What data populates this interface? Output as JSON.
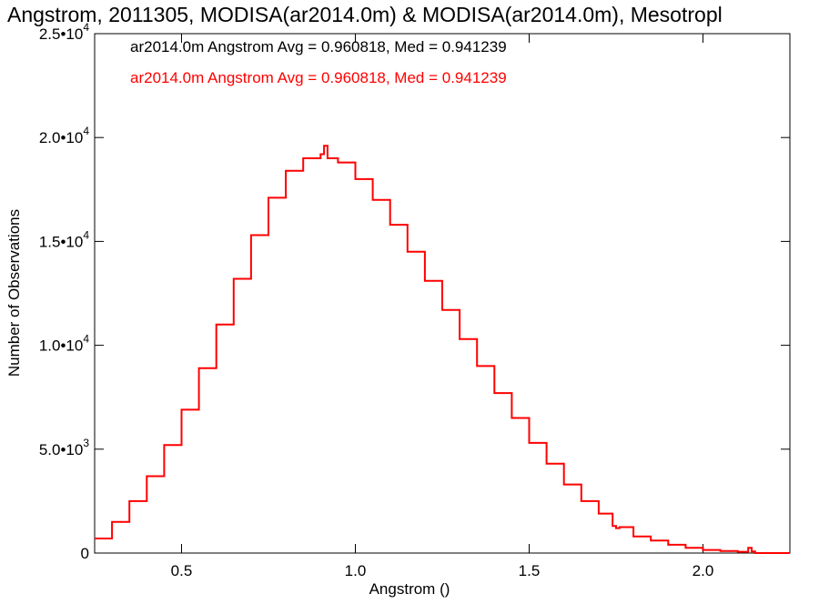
{
  "colors": {
    "black": "#000000",
    "red": "#ff0000",
    "background": "#ffffff"
  },
  "chart_data": {
    "type": "line",
    "title": "Angstrom, 2011305, MODISA(ar2014.0m) & MODISA(ar2014.0m), Mesotropl",
    "xlabel": "Angstrom ()",
    "ylabel": "Number of Observations",
    "xlim": [
      0.25,
      2.25
    ],
    "ylim": [
      0,
      25000
    ],
    "xticks": [
      0.5,
      1.0,
      1.5,
      2.0
    ],
    "xtick_labels": [
      "0.5",
      "1.0",
      "1.5",
      "2.0"
    ],
    "yticks": [
      0,
      5000,
      10000,
      15000,
      20000,
      25000
    ],
    "ytick_labels": [
      {
        "mant": "0",
        "exp": ""
      },
      {
        "mant": "5.0•10",
        "exp": "3"
      },
      {
        "mant": "1.0•10",
        "exp": "4"
      },
      {
        "mant": "1.5•10",
        "exp": "4"
      },
      {
        "mant": "2.0•10",
        "exp": "4"
      },
      {
        "mant": "2.5•10",
        "exp": "4"
      }
    ],
    "grid": false,
    "annotations": [
      {
        "text": "ar2014.0m Angstrom Avg = 0.960818, Med = 0.941239",
        "color": "#000000"
      },
      {
        "text": "ar2014.0m Angstrom Avg = 0.960818, Med = 0.941239",
        "color": "#ff0000"
      }
    ],
    "series": [
      {
        "color": "#ff0000",
        "step": true,
        "x": [
          0.25,
          0.3,
          0.35,
          0.4,
          0.45,
          0.5,
          0.55,
          0.6,
          0.65,
          0.7,
          0.75,
          0.8,
          0.85,
          0.9,
          0.91,
          0.92,
          0.95,
          1.0,
          1.05,
          1.1,
          1.15,
          1.2,
          1.25,
          1.3,
          1.35,
          1.4,
          1.45,
          1.5,
          1.55,
          1.6,
          1.65,
          1.7,
          1.74,
          1.75,
          1.76,
          1.8,
          1.85,
          1.9,
          1.95,
          2.0,
          2.05,
          2.1,
          2.13,
          2.14,
          2.15,
          2.2,
          2.25
        ],
        "y": [
          700,
          1500,
          2500,
          3700,
          5200,
          6900,
          8900,
          11000,
          13200,
          15300,
          17100,
          18400,
          19000,
          19200,
          19600,
          19000,
          18800,
          18000,
          17000,
          15800,
          14500,
          13100,
          11700,
          10300,
          9000,
          7700,
          6500,
          5300,
          4300,
          3300,
          2500,
          1900,
          1300,
          1200,
          1250,
          800,
          600,
          400,
          250,
          150,
          100,
          60,
          250,
          80,
          0,
          0,
          0
        ]
      }
    ]
  }
}
